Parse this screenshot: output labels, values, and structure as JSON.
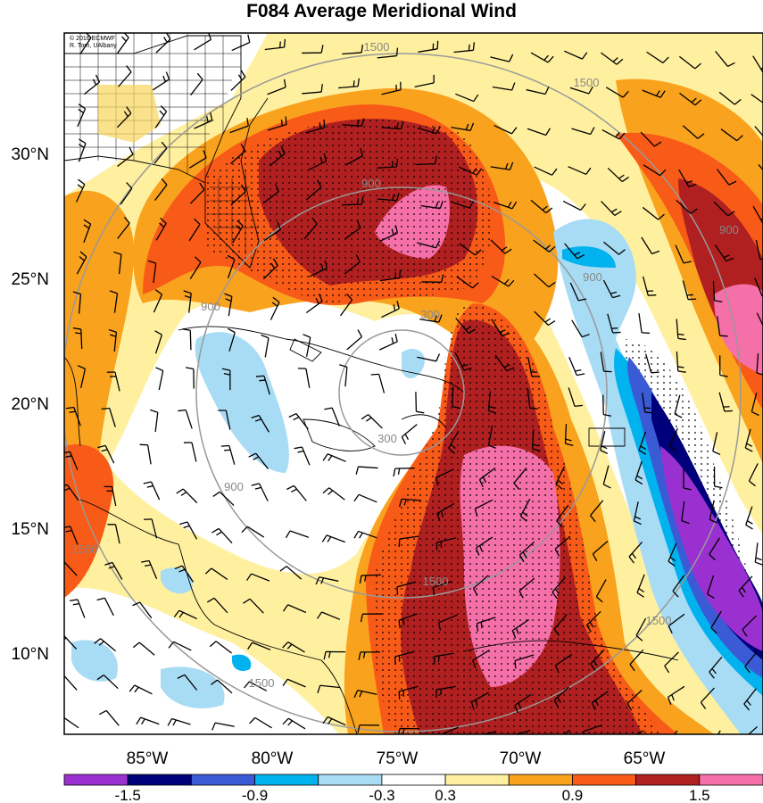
{
  "title": "F084 Average Meridional Wind",
  "credit": [
    "© 2016 ECMWF",
    "R. Torn, UAlbany"
  ],
  "map": {
    "lat_labels": [
      "30°N",
      "25°N",
      "20°N",
      "15°N",
      "10°N"
    ],
    "lon_labels": [
      "85°W",
      "80°W",
      "75°W",
      "70°W",
      "65°W"
    ],
    "contour_labels": [
      "1500",
      "1500",
      "900",
      "900",
      "900",
      "900",
      "300",
      "300",
      "900",
      "1500",
      "1500",
      "1500",
      "1500"
    ],
    "range_rings": [
      300,
      900,
      1500
    ]
  },
  "colorbar": {
    "colors": [
      "#9b30d0",
      "#00007a",
      "#3b5bd6",
      "#00b2ee",
      "#a8dcf5",
      "#ffffff",
      "#fff0a0",
      "#f9a21e",
      "#f85a18",
      "#b02020",
      "#f570a8"
    ],
    "tick_labels": [
      "-1.5",
      "-0.9",
      "-0.3",
      "0.3",
      "0.9",
      "1.5"
    ]
  }
}
